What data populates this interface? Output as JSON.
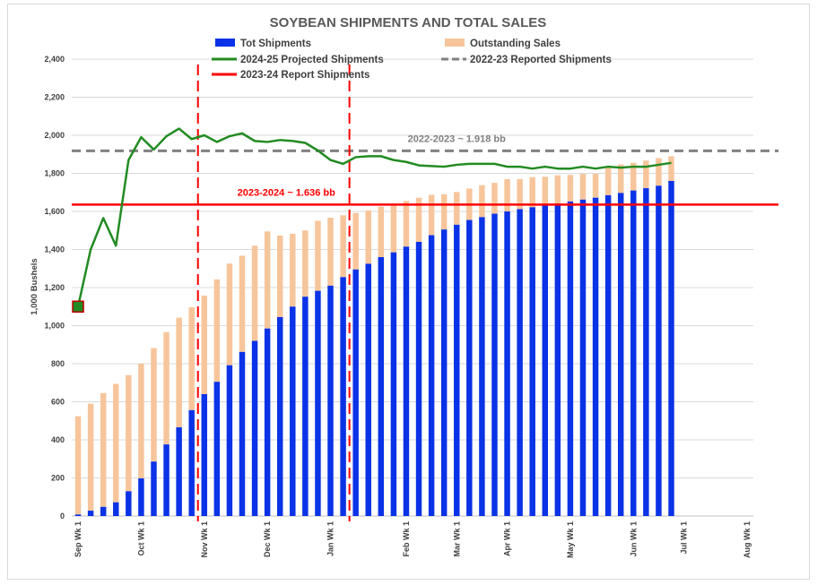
{
  "chart_data": {
    "type": "bar",
    "title": "SOYBEAN SHIPMENTS AND TOTAL SALES",
    "ylabel": "1,000 Bushels",
    "xlabel": "",
    "ylim": [
      0,
      2400
    ],
    "yticks": [
      0,
      200,
      400,
      600,
      800,
      1000,
      1200,
      1400,
      1600,
      1800,
      2000,
      2200,
      2400
    ],
    "ytick_labels": [
      "0",
      "200",
      "400",
      "600",
      "800",
      "1,000",
      "1,200",
      "1,400",
      "1,600",
      "1,800",
      "2,000",
      "2,200",
      "2,400"
    ],
    "xticks": [
      {
        "label": "Sep Wk 1",
        "week": 0
      },
      {
        "label": "Oct Wk 1",
        "week": 5
      },
      {
        "label": "Nov Wk 1",
        "week": 10
      },
      {
        "label": "Dec Wk 1",
        "week": 15
      },
      {
        "label": "Jan Wk 1",
        "week": 20
      },
      {
        "label": "Feb Wk 1",
        "week": 26
      },
      {
        "label": "Mar Wk 1",
        "week": 30
      },
      {
        "label": "Apr Wk 1",
        "week": 34
      },
      {
        "label": "May Wk 1",
        "week": 39
      },
      {
        "label": "Jun Wk 1",
        "week": 44
      },
      {
        "label": "Jul Wk 1",
        "week": 48
      },
      {
        "label": "Aug Wk 1",
        "week": 53
      }
    ],
    "grid": true,
    "legend_position": "top",
    "series": [
      {
        "name": "Tot Shipments",
        "kind": "stacked-bar",
        "color": "#0a32e6",
        "values": [
          8,
          28,
          48,
          72,
          130,
          198,
          286,
          376,
          466,
          556,
          640,
          705,
          792,
          862,
          920,
          985,
          1045,
          1100,
          1152,
          1183,
          1210,
          1255,
          1295,
          1325,
          1360,
          1385,
          1415,
          1440,
          1475,
          1505,
          1530,
          1555,
          1570,
          1588,
          1600,
          1612,
          1622,
          1632,
          1642,
          1652,
          1662,
          1672,
          1685,
          1697,
          1710,
          1722,
          1735,
          1760
        ]
      },
      {
        "name": "Outstanding Sales",
        "kind": "stacked-bar",
        "color": "#f7c59b",
        "values": [
          516,
          562,
          598,
          622,
          610,
          602,
          596,
          590,
          576,
          540,
          518,
          538,
          534,
          505,
          500,
          510,
          428,
          383,
          348,
          368,
          357,
          325,
          297,
          280,
          265,
          245,
          240,
          232,
          212,
          185,
          172,
          165,
          168,
          162,
          170,
          158,
          158,
          150,
          148,
          140,
          135,
          125,
          145,
          150,
          145,
          145,
          145,
          130
        ]
      },
      {
        "name": "2024-25 Projected Shipments",
        "kind": "line",
        "color": "#228b22",
        "values": [
          1100,
          1400,
          1565,
          1420,
          1870,
          1990,
          1925,
          1995,
          2035,
          1980,
          2000,
          1965,
          1995,
          2010,
          1970,
          1965,
          1975,
          1970,
          1960,
          1920,
          1870,
          1850,
          1885,
          1890,
          1890,
          1870,
          1860,
          1842,
          1838,
          1835,
          1845,
          1850,
          1850,
          1850,
          1835,
          1835,
          1825,
          1835,
          1825,
          1825,
          1835,
          1825,
          1835,
          1830,
          1835,
          1835,
          1845,
          1855
        ]
      },
      {
        "name": "2022-23 Reported Shipments",
        "kind": "hline-dashed",
        "color": "#808080",
        "value": 1918
      },
      {
        "name": "2023-24 Report Shipments",
        "kind": "hline",
        "color": "#ff0000",
        "value": 1636
      }
    ],
    "marker": {
      "week": 0,
      "value": 1100,
      "color": "#228b22",
      "border": "#c00000"
    },
    "vlines": [
      {
        "week": 9,
        "color": "#ff0000"
      },
      {
        "week": 21,
        "color": "#ff0000"
      }
    ],
    "annotations": [
      {
        "text": "2022-2023 ~ 1.918 bb",
        "week": 30,
        "value": 1918,
        "color": "#7f7f7f"
      },
      {
        "text": "2023-2024 ~ 1.636 bb",
        "week": 16.5,
        "value": 1636,
        "color": "#ff0000"
      }
    ],
    "total_weeks": 54
  }
}
